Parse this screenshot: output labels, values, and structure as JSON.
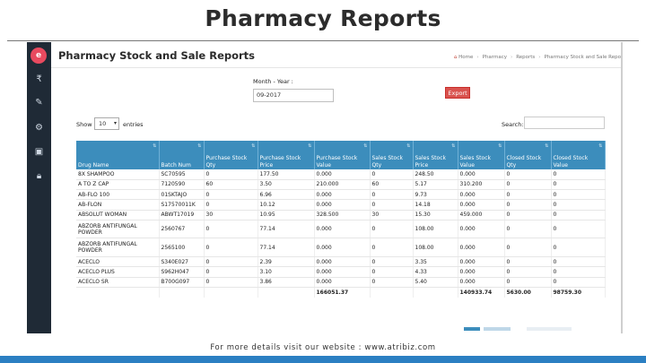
{
  "slide": {
    "title": "Pharmacy Reports",
    "footer": "For more details visit our website : www.atribiz.com"
  },
  "sidebar": {
    "logo": "e",
    "icons": [
      "rupee-icon",
      "edit-icon",
      "gear-icon",
      "briefcase-icon",
      "lock-icon"
    ]
  },
  "page": {
    "heading": "Pharmacy Stock and Sale Reports",
    "breadcrumb": [
      "Home",
      "Pharmacy",
      "Reports",
      "Pharmacy Stock and Sale Repo"
    ]
  },
  "filter": {
    "month_year_label": "Month - Year :",
    "month_year_value": "09-2017",
    "export_label": "Export"
  },
  "table_controls": {
    "show_label": "Show",
    "page_length": "10",
    "entries_label": "entries",
    "search_label": "Search:"
  },
  "table": {
    "columns": [
      "Drug Name",
      "Batch Num",
      "Purchase Stock Qty",
      "Purchase Stock Price",
      "Purchase Stock Value",
      "Sales Stock Qty",
      "Sales Stock Price",
      "Sales Stock Value",
      "Closed Stock Qty",
      "Closed Stock Value"
    ],
    "rows": [
      [
        "8X SHAMPOO",
        "SC70595",
        "0",
        "177.50",
        "0.000",
        "0",
        "248.50",
        "0.000",
        "0",
        "0"
      ],
      [
        "A TO Z CAP",
        "7120590",
        "60",
        "3.50",
        "210.000",
        "60",
        "5.17",
        "310.200",
        "0",
        "0"
      ],
      [
        "AB-FLO 100",
        "01SKTAJO",
        "0",
        "6.96",
        "0.000",
        "0",
        "9.73",
        "0.000",
        "0",
        "0"
      ],
      [
        "AB-FLON",
        "S17570011K",
        "0",
        "10.12",
        "0.000",
        "0",
        "14.18",
        "0.000",
        "0",
        "0"
      ],
      [
        "ABSOLUT WOMAN",
        "ABWT17019",
        "30",
        "10.95",
        "328.500",
        "30",
        "15.30",
        "459.000",
        "0",
        "0"
      ],
      [
        "ABZORB ANTIFUNGAL POWDER",
        "2560767",
        "0",
        "77.14",
        "0.000",
        "0",
        "108.00",
        "0.000",
        "0",
        "0"
      ],
      [
        "ABZORB ANTIFUNGAL POWDER",
        "2565100",
        "0",
        "77.14",
        "0.000",
        "0",
        "108.00",
        "0.000",
        "0",
        "0"
      ],
      [
        "ACECLO",
        "S340E027",
        "0",
        "2.39",
        "0.000",
        "0",
        "3.35",
        "0.000",
        "0",
        "0"
      ],
      [
        "ACECLO PLUS",
        "S962H047",
        "0",
        "3.10",
        "0.000",
        "0",
        "4.33",
        "0.000",
        "0",
        "0"
      ],
      [
        "ACECLO SR",
        "B700G097",
        "0",
        "3.86",
        "0.000",
        "0",
        "5.40",
        "0.000",
        "0",
        "0"
      ]
    ],
    "totals": [
      "",
      "",
      "",
      "",
      "166051.37",
      "",
      "",
      "140933.74",
      "5630.00",
      "98759.30"
    ]
  }
}
